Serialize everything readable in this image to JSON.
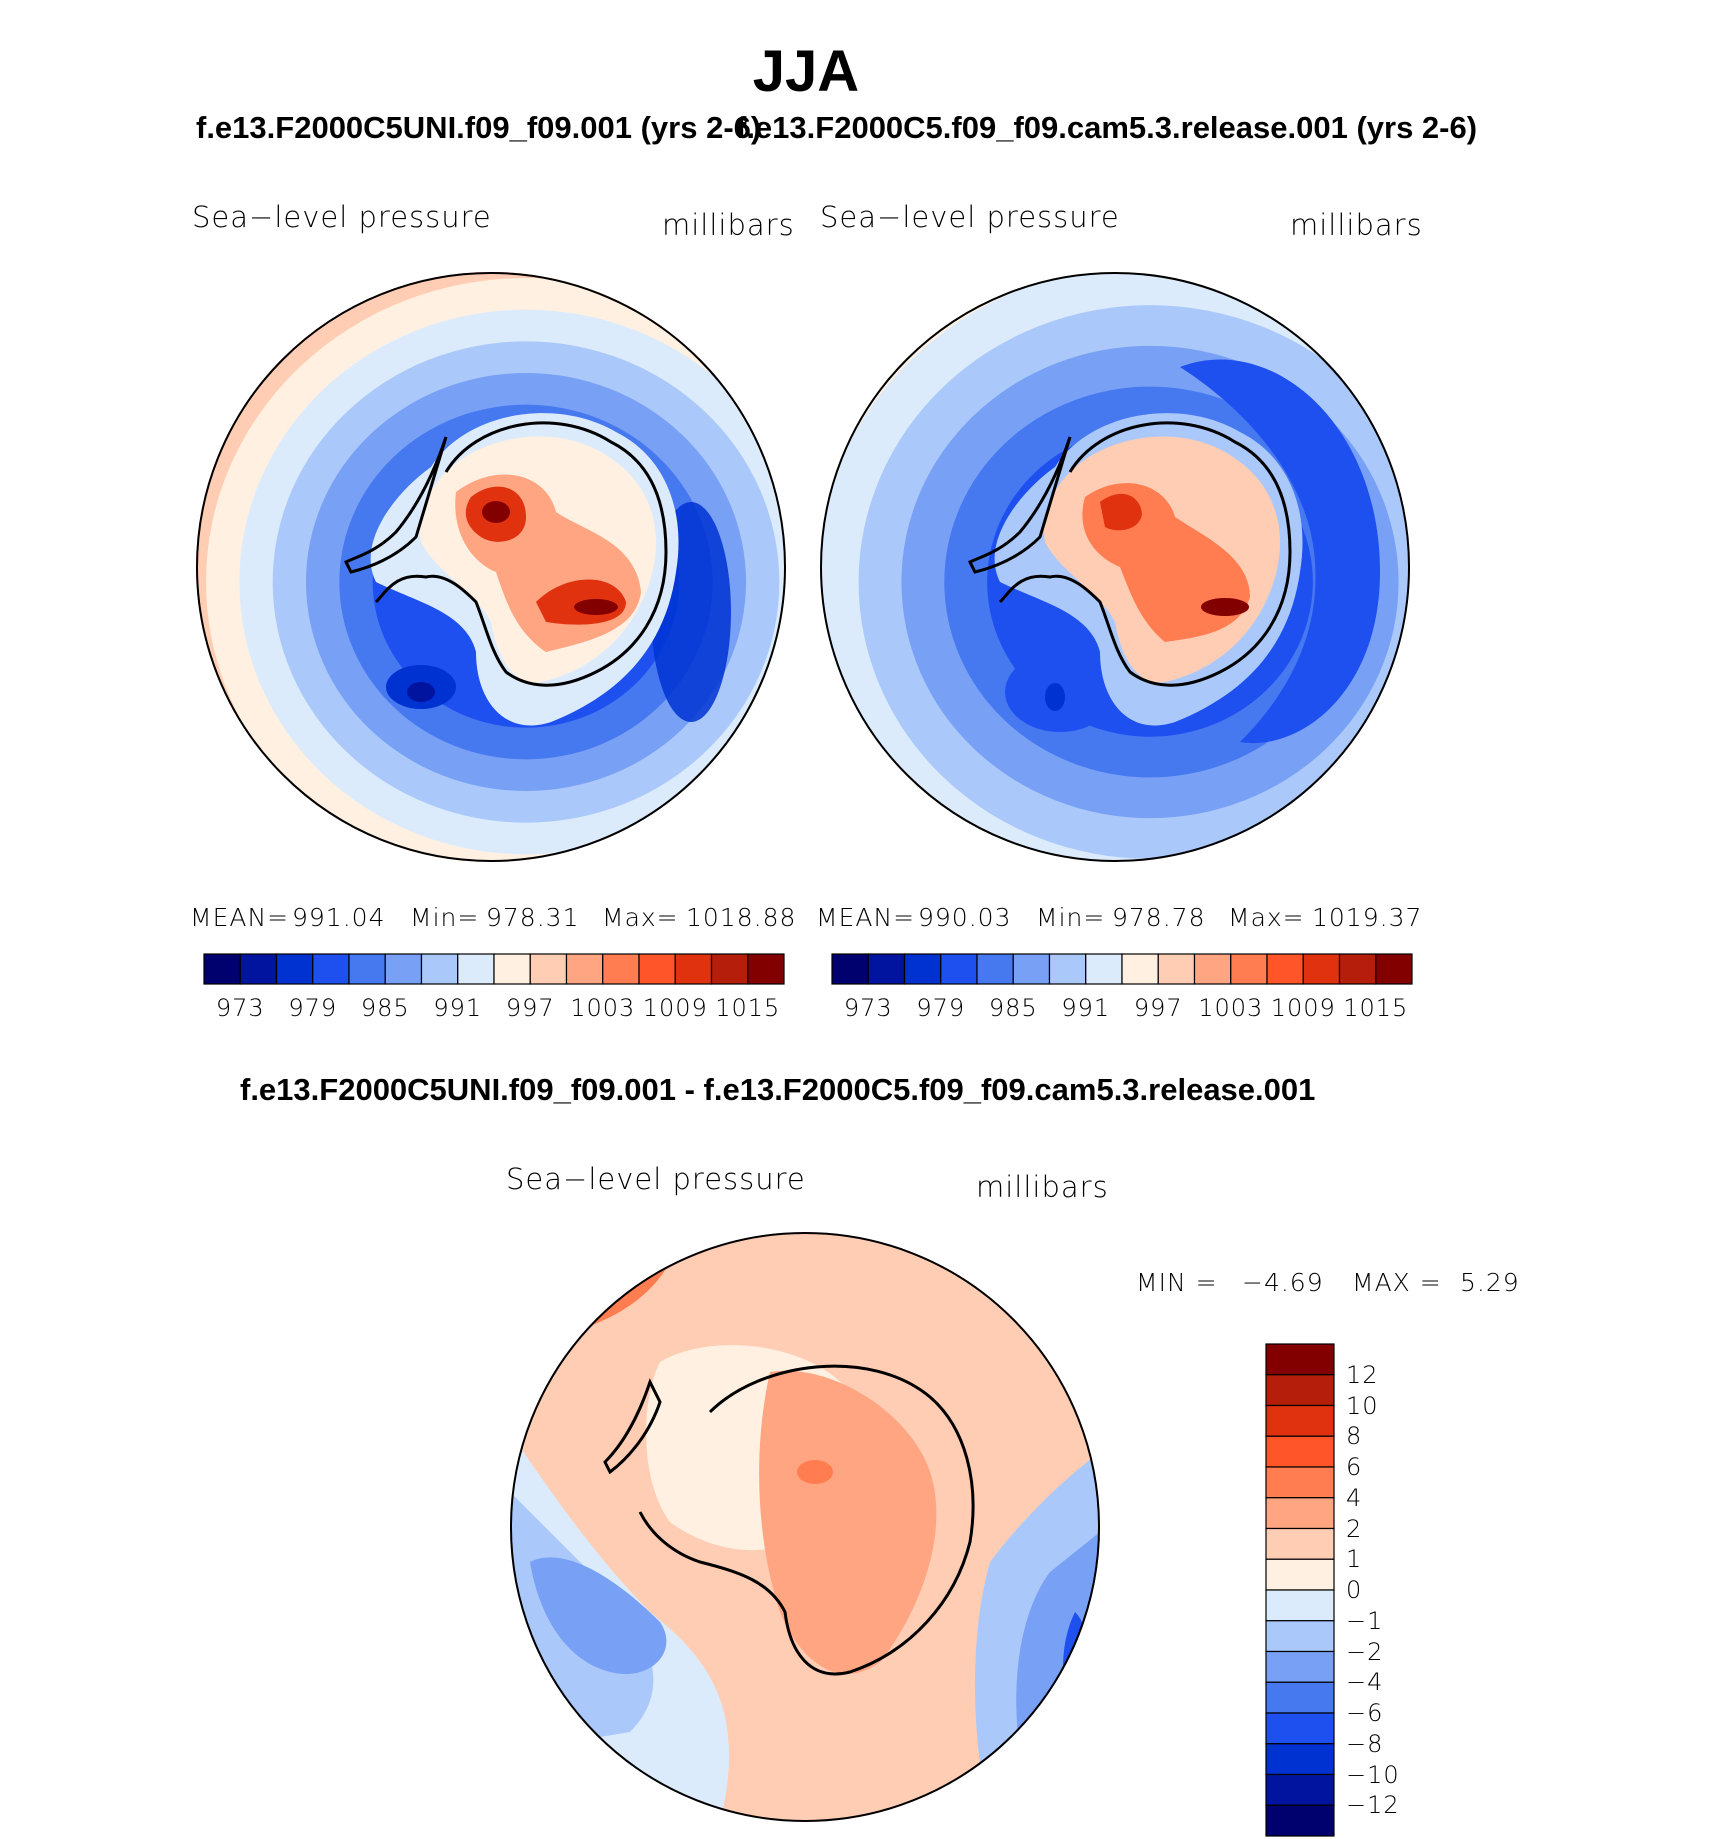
{
  "page_title": "JJA",
  "model_a": "f.e13.F2000C5UNI.f09_f09.001",
  "model_b": "f.e13.F2000C5.f09_f09.cam5.3.release.001",
  "panel_left": {
    "title": "f.e13.F2000C5UNI.f09_f09.001 (yrs 2-6)",
    "variable": "Sea−level pressure",
    "units": "millibars",
    "mean_label": "MEAN=",
    "mean_value": "991.04",
    "min_label": "Min=",
    "min_value": "978.31",
    "max_label": "Max=",
    "max_value": "1018.88"
  },
  "panel_right": {
    "title": "f.e13.F2000C5.f09_f09.cam5.3.release.001 (yrs 2-6)",
    "variable": "Sea−level pressure",
    "units": "millibars",
    "mean_label": "MEAN=",
    "mean_value": "990.03",
    "min_label": "Min=",
    "min_value": "978.78",
    "max_label": "Max=",
    "max_value": "1019.37"
  },
  "panel_diff": {
    "title": "f.e13.F2000C5UNI.f09_f09.001 - f.e13.F2000C5.f09_f09.cam5.3.release.001",
    "variable": "Sea−level pressure",
    "units": "millibars",
    "min_label": "MIN =",
    "min_value": "−4.69",
    "max_label": "MAX =",
    "max_value": "5.29"
  },
  "colorbar_abs": {
    "colors": [
      "#00006e",
      "#0014a0",
      "#0032d2",
      "#1e50f0",
      "#4678f0",
      "#78a0f5",
      "#aac8fa",
      "#dcebfc",
      "#fff0e1",
      "#ffcdb4",
      "#ffa582",
      "#ff7d50",
      "#ff5528",
      "#e1320f",
      "#b41e0a",
      "#820000"
    ],
    "tick_labels": [
      "973",
      "979",
      "985",
      "991",
      "997",
      "1003",
      "1009",
      "1015"
    ]
  },
  "colorbar_diff": {
    "colors": [
      "#820000",
      "#b41e0a",
      "#e1320f",
      "#ff5528",
      "#ff7d50",
      "#ffa582",
      "#ffcdb4",
      "#fff0e1",
      "#dcebfc",
      "#aac8fa",
      "#78a0f5",
      "#4678f0",
      "#1e50f0",
      "#0032d2",
      "#0014a0",
      "#00006e"
    ],
    "tick_labels": [
      "12",
      "10",
      "8",
      "6",
      "4",
      "2",
      "1",
      "0",
      "−1",
      "−2",
      "−4",
      "−6",
      "−8",
      "−10",
      "−12"
    ]
  },
  "map_fields": {
    "left_rings": [
      "#ff7d50",
      "#ffa582",
      "#ffcdb4",
      "#fff0e1",
      "#dcebfc",
      "#aac8fa",
      "#78a0f5",
      "#4678f0",
      "#1e50f0"
    ],
    "right_rings": [
      "#ffcdb4",
      "#fff0e1",
      "#dcebfc",
      "#aac8fa",
      "#78a0f5",
      "#4678f0",
      "#1e50f0"
    ],
    "diff_base": "#ffcdb4"
  }
}
